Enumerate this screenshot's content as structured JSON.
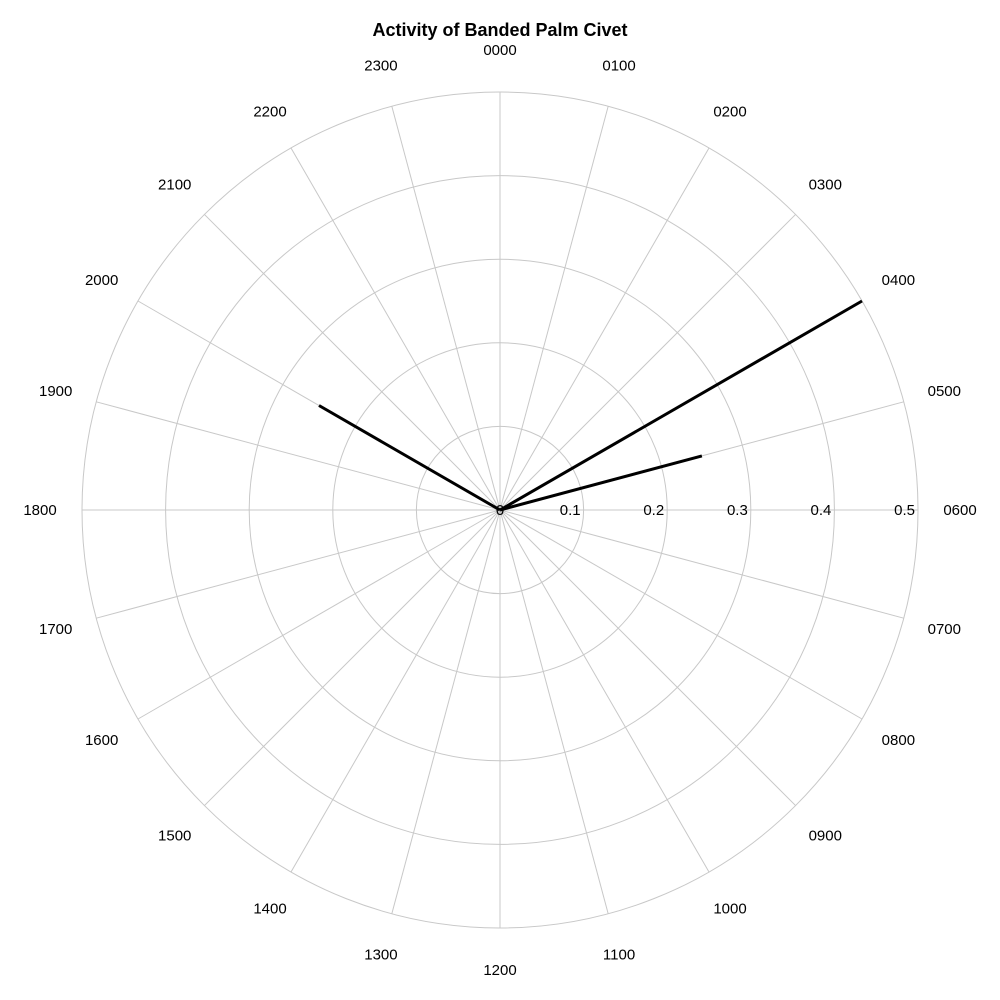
{
  "chart_data": {
    "type": "polar-line",
    "title": "Activity of Banded Palm Civet",
    "theta_labels": [
      "0000",
      "0100",
      "0200",
      "0300",
      "0400",
      "0500",
      "0600",
      "0700",
      "0800",
      "0900",
      "1000",
      "1100",
      "1200",
      "1300",
      "1400",
      "1500",
      "1600",
      "1700",
      "1800",
      "1900",
      "2000",
      "2100",
      "2200",
      "2300"
    ],
    "r_ticks": [
      "0",
      "0.1",
      "0.2",
      "0.3",
      "0.4",
      "0.5"
    ],
    "rlim": [
      0,
      0.5
    ],
    "direction": "clockwise",
    "zero_location": "top",
    "grid": true,
    "series": [
      {
        "hour_index": 4,
        "value": 0.5
      },
      {
        "hour_index": 5,
        "value": 0.25
      },
      {
        "hour_index": 20,
        "value": 0.25
      }
    ],
    "colors": {
      "line": "#000000",
      "grid": "#c8c8c8"
    }
  }
}
